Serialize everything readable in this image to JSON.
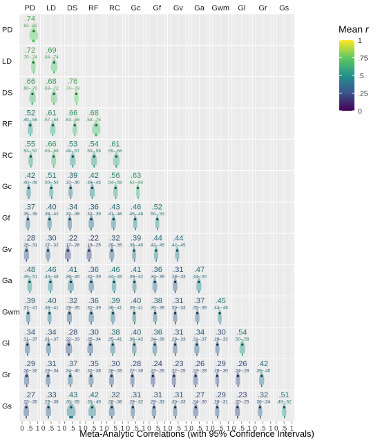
{
  "chart_data": {
    "type": "heatmap",
    "variables": [
      "PD",
      "LD",
      "DS",
      "RF",
      "RC",
      "Gc",
      "Gf",
      "Gv",
      "Ga",
      "Gwm",
      "Gl",
      "Gr",
      "Gs"
    ],
    "xlabel": "Meta-Analytic Correlations (with 95% Confidence Intervals)",
    "x_ticks": [
      "0",
      ".5",
      "1"
    ],
    "xlim": [
      0,
      1
    ],
    "legend": {
      "title": "Mean r",
      "ticks": [
        "1",
        ".75",
        ".5",
        ".25",
        "0"
      ],
      "range": [
        0,
        1
      ],
      "placement": "top-right"
    },
    "colors": {
      "scale": [
        "#440154",
        "#3b528b",
        "#21918c",
        "#5ec962",
        "#fde725"
      ],
      "cell_bg": "#ebebeb",
      "grid": "#ffffff"
    },
    "cells": [
      {
        "row": "PD",
        "col": "PD",
        "r": 0.74,
        "r_label": ".74",
        "ci": ".63–.82",
        "lo": 0.63,
        "hi": 0.82
      },
      {
        "row": "LD",
        "col": "PD",
        "r": 0.72,
        "r_label": ".72",
        "ci": ".70–.74",
        "lo": 0.7,
        "hi": 0.74
      },
      {
        "row": "LD",
        "col": "LD",
        "r": 0.69,
        "r_label": ".69",
        "ci": ".64–.74",
        "lo": 0.64,
        "hi": 0.74
      },
      {
        "row": "DS",
        "col": "PD",
        "r": 0.66,
        "r_label": ".66",
        "ci": ".60–.70",
        "lo": 0.6,
        "hi": 0.7
      },
      {
        "row": "DS",
        "col": "LD",
        "r": 0.68,
        "r_label": ".68",
        "ci": ".63–.72",
        "lo": 0.63,
        "hi": 0.72
      },
      {
        "row": "DS",
        "col": "DS",
        "r": 0.76,
        "r_label": ".76",
        "ci": ".74–.78",
        "lo": 0.74,
        "hi": 0.78
      },
      {
        "row": "RF",
        "col": "PD",
        "r": 0.52,
        "r_label": ".52",
        "ci": ".49–.55",
        "lo": 0.49,
        "hi": 0.55
      },
      {
        "row": "RF",
        "col": "LD",
        "r": 0.61,
        "r_label": ".61",
        "ci": ".57–.64",
        "lo": 0.57,
        "hi": 0.64
      },
      {
        "row": "RF",
        "col": "DS",
        "r": 0.66,
        "r_label": ".66",
        "ci": ".63–.68",
        "lo": 0.63,
        "hi": 0.68
      },
      {
        "row": "RF",
        "col": "RF",
        "r": 0.68,
        "r_label": ".68",
        "ci": ".58–.75",
        "lo": 0.58,
        "hi": 0.75
      },
      {
        "row": "RC",
        "col": "PD",
        "r": 0.55,
        "r_label": ".55",
        "ci": ".53–.57",
        "lo": 0.53,
        "hi": 0.57
      },
      {
        "row": "RC",
        "col": "LD",
        "r": 0.66,
        "r_label": ".66",
        "ci": ".63–.68",
        "lo": 0.63,
        "hi": 0.68
      },
      {
        "row": "RC",
        "col": "DS",
        "r": 0.53,
        "r_label": ".53",
        "ci": ".49–.57",
        "lo": 0.49,
        "hi": 0.57
      },
      {
        "row": "RC",
        "col": "RF",
        "r": 0.54,
        "r_label": ".54",
        "ci": ".50–.58",
        "lo": 0.5,
        "hi": 0.58
      },
      {
        "row": "RC",
        "col": "RC",
        "r": 0.61,
        "r_label": ".61",
        "ci": ".55–.66",
        "lo": 0.55,
        "hi": 0.66
      },
      {
        "row": "Gc",
        "col": "PD",
        "r": 0.42,
        "r_label": ".42",
        "ci": ".40–.44",
        "lo": 0.4,
        "hi": 0.44
      },
      {
        "row": "Gc",
        "col": "LD",
        "r": 0.51,
        "r_label": ".51",
        "ci": ".50–.53",
        "lo": 0.5,
        "hi": 0.53
      },
      {
        "row": "Gc",
        "col": "DS",
        "r": 0.39,
        "r_label": ".39",
        "ci": ".37–.40",
        "lo": 0.37,
        "hi": 0.4
      },
      {
        "row": "Gc",
        "col": "RF",
        "r": 0.42,
        "r_label": ".42",
        "ci": ".39–.45",
        "lo": 0.39,
        "hi": 0.45
      },
      {
        "row": "Gc",
        "col": "RC",
        "r": 0.56,
        "r_label": ".56",
        "ci": ".54–.58",
        "lo": 0.54,
        "hi": 0.58
      },
      {
        "row": "Gc",
        "col": "Gc",
        "r": 0.63,
        "r_label": ".63",
        "ci": ".62–.64",
        "lo": 0.62,
        "hi": 0.64
      },
      {
        "row": "Gf",
        "col": "PD",
        "r": 0.37,
        "r_label": ".37",
        "ci": ".35–.39",
        "lo": 0.35,
        "hi": 0.39
      },
      {
        "row": "Gf",
        "col": "LD",
        "r": 0.4,
        "r_label": ".40",
        "ci": ".38–.42",
        "lo": 0.38,
        "hi": 0.42
      },
      {
        "row": "Gf",
        "col": "DS",
        "r": 0.34,
        "r_label": ".34",
        "ci": ".32–.36",
        "lo": 0.32,
        "hi": 0.36
      },
      {
        "row": "Gf",
        "col": "RF",
        "r": 0.36,
        "r_label": ".36",
        "ci": ".32–.39",
        "lo": 0.32,
        "hi": 0.39
      },
      {
        "row": "Gf",
        "col": "RC",
        "r": 0.43,
        "r_label": ".43",
        "ci": ".41–.46",
        "lo": 0.41,
        "hi": 0.46
      },
      {
        "row": "Gf",
        "col": "Gc",
        "r": 0.46,
        "r_label": ".46",
        "ci": ".45–.48",
        "lo": 0.45,
        "hi": 0.48
      },
      {
        "row": "Gf",
        "col": "Gf",
        "r": 0.52,
        "r_label": ".52",
        "ci": ".50–.53",
        "lo": 0.5,
        "hi": 0.53
      },
      {
        "row": "Gv",
        "col": "PD",
        "r": 0.28,
        "r_label": ".28",
        "ci": ".25–.31",
        "lo": 0.25,
        "hi": 0.31
      },
      {
        "row": "Gv",
        "col": "LD",
        "r": 0.3,
        "r_label": ".30",
        "ci": ".27–.32",
        "lo": 0.27,
        "hi": 0.32
      },
      {
        "row": "Gv",
        "col": "DS",
        "r": 0.22,
        "r_label": ".22",
        "ci": ".17–.26",
        "lo": 0.17,
        "hi": 0.26
      },
      {
        "row": "Gv",
        "col": "RF",
        "r": 0.22,
        "r_label": ".22",
        "ci": ".19–.25",
        "lo": 0.19,
        "hi": 0.25
      },
      {
        "row": "Gv",
        "col": "RC",
        "r": 0.32,
        "r_label": ".32",
        "ci": ".29–.35",
        "lo": 0.29,
        "hi": 0.35
      },
      {
        "row": "Gv",
        "col": "Gc",
        "r": 0.39,
        "r_label": ".39",
        "ci": ".38–.40",
        "lo": 0.38,
        "hi": 0.4
      },
      {
        "row": "Gv",
        "col": "Gf",
        "r": 0.44,
        "r_label": ".44",
        "ci": ".42–.45",
        "lo": 0.42,
        "hi": 0.45
      },
      {
        "row": "Gv",
        "col": "Gv",
        "r": 0.44,
        "r_label": ".44",
        "ci": ".42–.45",
        "lo": 0.42,
        "hi": 0.45
      },
      {
        "row": "Ga",
        "col": "PD",
        "r": 0.48,
        "r_label": ".48",
        "ci": ".46–.51",
        "lo": 0.46,
        "hi": 0.51
      },
      {
        "row": "Ga",
        "col": "LD",
        "r": 0.46,
        "r_label": ".46",
        "ci": ".43–.48",
        "lo": 0.43,
        "hi": 0.48
      },
      {
        "row": "Ga",
        "col": "DS",
        "r": 0.41,
        "r_label": ".41",
        "ci": ".36–.45",
        "lo": 0.36,
        "hi": 0.45
      },
      {
        "row": "Ga",
        "col": "RF",
        "r": 0.36,
        "r_label": ".36",
        "ci": ".32–.39",
        "lo": 0.32,
        "hi": 0.39
      },
      {
        "row": "Ga",
        "col": "RC",
        "r": 0.46,
        "r_label": ".46",
        "ci": ".44–.48",
        "lo": 0.44,
        "hi": 0.48
      },
      {
        "row": "Ga",
        "col": "Gc",
        "r": 0.41,
        "r_label": ".41",
        "ci": ".39–.42",
        "lo": 0.39,
        "hi": 0.42
      },
      {
        "row": "Ga",
        "col": "Gf",
        "r": 0.36,
        "r_label": ".36",
        "ci": ".34–.39",
        "lo": 0.34,
        "hi": 0.39
      },
      {
        "row": "Ga",
        "col": "Gv",
        "r": 0.31,
        "r_label": ".31",
        "ci": ".28–.33",
        "lo": 0.28,
        "hi": 0.33
      },
      {
        "row": "Ga",
        "col": "Ga",
        "r": 0.47,
        "r_label": ".47",
        "ci": ".44–.50",
        "lo": 0.44,
        "hi": 0.5
      },
      {
        "row": "Gwm",
        "col": "PD",
        "r": 0.39,
        "r_label": ".39",
        "ci": ".37–.41",
        "lo": 0.37,
        "hi": 0.41
      },
      {
        "row": "Gwm",
        "col": "LD",
        "r": 0.4,
        "r_label": ".40",
        "ci": ".38–.41",
        "lo": 0.38,
        "hi": 0.41
      },
      {
        "row": "Gwm",
        "col": "DS",
        "r": 0.32,
        "r_label": ".32",
        "ci": ".29–.35",
        "lo": 0.29,
        "hi": 0.35
      },
      {
        "row": "Gwm",
        "col": "RF",
        "r": 0.36,
        "r_label": ".36",
        "ci": ".32–.39",
        "lo": 0.32,
        "hi": 0.39
      },
      {
        "row": "Gwm",
        "col": "RC",
        "r": 0.39,
        "r_label": ".39",
        "ci": ".36–.41",
        "lo": 0.36,
        "hi": 0.41
      },
      {
        "row": "Gwm",
        "col": "Gc",
        "r": 0.4,
        "r_label": ".40",
        "ci": ".39–.41",
        "lo": 0.39,
        "hi": 0.41
      },
      {
        "row": "Gwm",
        "col": "Gf",
        "r": 0.38,
        "r_label": ".38",
        "ci": ".36–.39",
        "lo": 0.36,
        "hi": 0.39
      },
      {
        "row": "Gwm",
        "col": "Gv",
        "r": 0.31,
        "r_label": ".31",
        "ci": ".30–.33",
        "lo": 0.3,
        "hi": 0.33
      },
      {
        "row": "Gwm",
        "col": "Ga",
        "r": 0.37,
        "r_label": ".37",
        "ci": ".35–.39",
        "lo": 0.35,
        "hi": 0.39
      },
      {
        "row": "Gwm",
        "col": "Gwm",
        "r": 0.45,
        "r_label": ".45",
        "ci": ".44–.46",
        "lo": 0.44,
        "hi": 0.46
      },
      {
        "row": "Gl",
        "col": "PD",
        "r": 0.34,
        "r_label": ".34",
        "ci": ".31–.37",
        "lo": 0.31,
        "hi": 0.37
      },
      {
        "row": "Gl",
        "col": "LD",
        "r": 0.34,
        "r_label": ".34",
        "ci": ".31–.37",
        "lo": 0.31,
        "hi": 0.37
      },
      {
        "row": "Gl",
        "col": "DS",
        "r": 0.28,
        "r_label": ".28",
        "ci": ".22–.33",
        "lo": 0.22,
        "hi": 0.33
      },
      {
        "row": "Gl",
        "col": "RF",
        "r": 0.3,
        "r_label": ".30",
        "ci": ".25–.34",
        "lo": 0.25,
        "hi": 0.34
      },
      {
        "row": "Gl",
        "col": "RC",
        "r": 0.38,
        "r_label": ".38",
        "ci": ".35–.41",
        "lo": 0.35,
        "hi": 0.41
      },
      {
        "row": "Gl",
        "col": "Gc",
        "r": 0.4,
        "r_label": ".40",
        "ci": ".38–.42",
        "lo": 0.38,
        "hi": 0.42
      },
      {
        "row": "Gl",
        "col": "Gf",
        "r": 0.36,
        "r_label": ".36",
        "ci": ".34–.39",
        "lo": 0.34,
        "hi": 0.39
      },
      {
        "row": "Gl",
        "col": "Gv",
        "r": 0.31,
        "r_label": ".31",
        "ci": ".29–.33",
        "lo": 0.29,
        "hi": 0.33
      },
      {
        "row": "Gl",
        "col": "Ga",
        "r": 0.34,
        "r_label": ".34",
        "ci": ".31–.37",
        "lo": 0.31,
        "hi": 0.37
      },
      {
        "row": "Gl",
        "col": "Gwm",
        "r": 0.3,
        "r_label": ".30",
        "ci": ".29–.32",
        "lo": 0.29,
        "hi": 0.32
      },
      {
        "row": "Gl",
        "col": "Gl",
        "r": 0.54,
        "r_label": ".54",
        "ci": ".50–.58",
        "lo": 0.5,
        "hi": 0.58
      },
      {
        "row": "Gr",
        "col": "PD",
        "r": 0.29,
        "r_label": ".29",
        "ci": ".26–.32",
        "lo": 0.26,
        "hi": 0.32
      },
      {
        "row": "Gr",
        "col": "LD",
        "r": 0.31,
        "r_label": ".31",
        "ci": ".29–.34",
        "lo": 0.29,
        "hi": 0.34
      },
      {
        "row": "Gr",
        "col": "DS",
        "r": 0.37,
        "r_label": ".37",
        "ci": ".34–.40",
        "lo": 0.34,
        "hi": 0.4
      },
      {
        "row": "Gr",
        "col": "RF",
        "r": 0.35,
        "r_label": ".35",
        "ci": ".32–.38",
        "lo": 0.32,
        "hi": 0.38
      },
      {
        "row": "Gr",
        "col": "RC",
        "r": 0.3,
        "r_label": ".30",
        "ci": ".28–.33",
        "lo": 0.28,
        "hi": 0.33
      },
      {
        "row": "Gr",
        "col": "Gc",
        "r": 0.28,
        "r_label": ".28",
        "ci": ".27–.30",
        "lo": 0.27,
        "hi": 0.3
      },
      {
        "row": "Gr",
        "col": "Gf",
        "r": 0.24,
        "r_label": ".24",
        "ci": ".22–.26",
        "lo": 0.22,
        "hi": 0.26
      },
      {
        "row": "Gr",
        "col": "Gv",
        "r": 0.23,
        "r_label": ".23",
        "ci": ".22–.25",
        "lo": 0.22,
        "hi": 0.25
      },
      {
        "row": "Gr",
        "col": "Ga",
        "r": 0.26,
        "r_label": ".26",
        "ci": ".23–.28",
        "lo": 0.23,
        "hi": 0.28
      },
      {
        "row": "Gr",
        "col": "Gwm",
        "r": 0.29,
        "r_label": ".29",
        "ci": ".28–.30",
        "lo": 0.28,
        "hi": 0.3
      },
      {
        "row": "Gr",
        "col": "Gl",
        "r": 0.26,
        "r_label": ".26",
        "ci": ".24–.28",
        "lo": 0.24,
        "hi": 0.28
      },
      {
        "row": "Gr",
        "col": "Gr",
        "r": 0.42,
        "r_label": ".42",
        "ci": ".39–.45",
        "lo": 0.39,
        "hi": 0.45
      },
      {
        "row": "Gs",
        "col": "PD",
        "r": 0.27,
        "r_label": ".27",
        "ci": ".23–.30",
        "lo": 0.23,
        "hi": 0.3
      },
      {
        "row": "Gs",
        "col": "LD",
        "r": 0.33,
        "r_label": ".33",
        "ci": ".29–.36",
        "lo": 0.29,
        "hi": 0.36
      },
      {
        "row": "Gs",
        "col": "DS",
        "r": 0.43,
        "r_label": ".43",
        "ci": ".30–.55",
        "lo": 0.3,
        "hi": 0.55
      },
      {
        "row": "Gs",
        "col": "RF",
        "r": 0.42,
        "r_label": ".42",
        "ci": ".35–.49",
        "lo": 0.35,
        "hi": 0.49
      },
      {
        "row": "Gs",
        "col": "RC",
        "r": 0.32,
        "r_label": ".32",
        "ci": ".28–.36",
        "lo": 0.28,
        "hi": 0.36
      },
      {
        "row": "Gs",
        "col": "Gc",
        "r": 0.31,
        "r_label": ".31",
        "ci": ".29–.32",
        "lo": 0.29,
        "hi": 0.32
      },
      {
        "row": "Gs",
        "col": "Gf",
        "r": 0.31,
        "r_label": ".31",
        "ci": ".29–.33",
        "lo": 0.29,
        "hi": 0.33
      },
      {
        "row": "Gs",
        "col": "Gv",
        "r": 0.31,
        "r_label": ".31",
        "ci": ".30–.33",
        "lo": 0.3,
        "hi": 0.33
      },
      {
        "row": "Gs",
        "col": "Ga",
        "r": 0.27,
        "r_label": ".27",
        "ci": ".24–.30",
        "lo": 0.24,
        "hi": 0.3
      },
      {
        "row": "Gs",
        "col": "Gwm",
        "r": 0.29,
        "r_label": ".29",
        "ci": ".28–.31",
        "lo": 0.28,
        "hi": 0.31
      },
      {
        "row": "Gs",
        "col": "Gl",
        "r": 0.23,
        "r_label": ".23",
        "ci": ".20–.25",
        "lo": 0.2,
        "hi": 0.25
      },
      {
        "row": "Gs",
        "col": "Gr",
        "r": 0.32,
        "r_label": ".32",
        "ci": ".30–.34",
        "lo": 0.3,
        "hi": 0.34
      },
      {
        "row": "Gs",
        "col": "Gs",
        "r": 0.51,
        "r_label": ".51",
        "ci": ".49–.52",
        "lo": 0.49,
        "hi": 0.52
      }
    ]
  }
}
